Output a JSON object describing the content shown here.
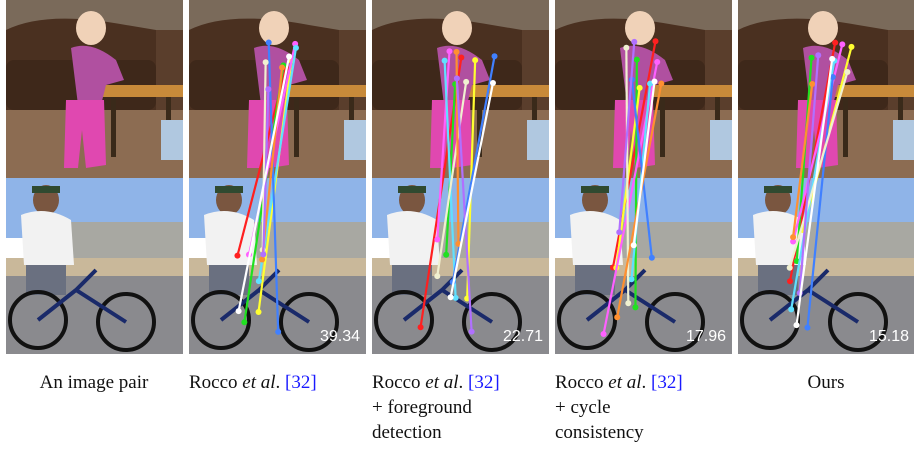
{
  "panels": [
    {
      "caption": [
        "An image pair"
      ]
    },
    {
      "caption": [
        "Rocco",
        "et al",
        ".",
        "[32]"
      ],
      "score": 39.34
    },
    {
      "caption": [
        "Rocco",
        "et al",
        ".",
        "[32]",
        "+ foreground",
        "detection"
      ],
      "score": 22.71
    },
    {
      "caption": [
        "Rocco",
        "et al",
        ".",
        "[32]",
        "+ cycle",
        "consistency"
      ],
      "score": 17.96
    },
    {
      "caption": [
        "Ours"
      ],
      "score": 15.18
    }
  ]
}
